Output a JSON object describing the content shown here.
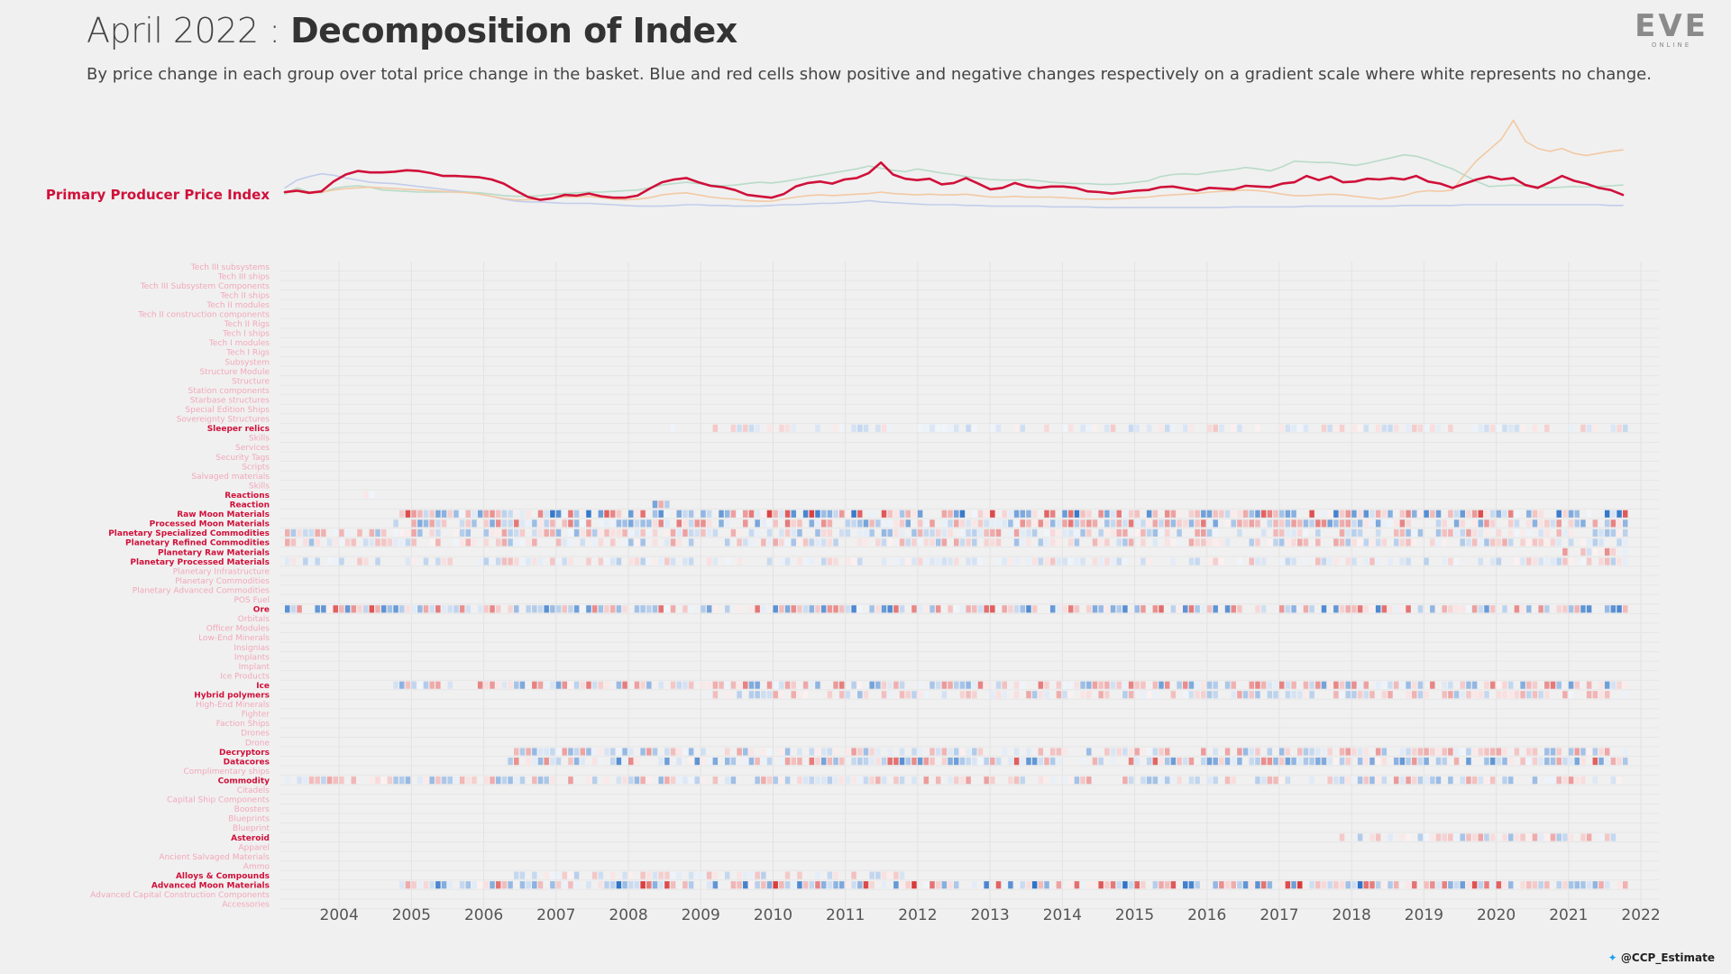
{
  "header": {
    "title_light": "April 2022 : ",
    "title_bold": "Decomposition of Index",
    "subtitle": "By price change in each group over total price change in the basket. Blue and red cells show positive and negative changes respectively on a gradient scale where white represents no change."
  },
  "logo": {
    "text": "EVE",
    "subtext": "ONLINE"
  },
  "credit": {
    "handle": "@CCP_Estimate",
    "icon": "twitter-bird-icon"
  },
  "colors": {
    "background": "#f0f0f0",
    "highlight": "#d0103a",
    "inactive_label": "#f2a8bb",
    "positive": "#2f74c8",
    "negative": "#d93a3a",
    "context_lines": [
      "#f2c9a4",
      "#b8dbc8",
      "#c2cdea"
    ]
  },
  "chart_data": [
    {
      "type": "line",
      "series": [
        {
          "name": "Primary Producer Price Index",
          "highlight": true,
          "values": [
            1.0,
            1.02,
            0.99,
            1.01,
            1.15,
            1.25,
            1.3,
            1.28,
            1.28,
            1.29,
            1.31,
            1.3,
            1.27,
            1.23,
            1.23,
            1.22,
            1.21,
            1.18,
            1.12,
            1.02,
            0.93,
            0.89,
            0.91,
            0.96,
            0.95,
            0.98,
            0.94,
            0.92,
            0.92,
            0.95,
            1.05,
            1.14,
            1.18,
            1.2,
            1.14,
            1.09,
            1.07,
            1.03,
            0.96,
            0.94,
            0.92,
            0.97,
            1.08,
            1.13,
            1.15,
            1.12,
            1.18,
            1.2,
            1.27,
            1.42,
            1.25,
            1.19,
            1.17,
            1.19,
            1.11,
            1.13,
            1.2,
            1.12,
            1.04,
            1.06,
            1.13,
            1.08,
            1.06,
            1.08,
            1.08,
            1.06,
            1.01,
            1.0,
            0.98,
            1.0,
            1.02,
            1.03,
            1.07,
            1.08,
            1.05,
            1.02,
            1.06,
            1.05,
            1.04,
            1.09,
            1.08,
            1.07,
            1.12,
            1.14,
            1.23,
            1.17,
            1.22,
            1.14,
            1.15,
            1.19,
            1.18,
            1.2,
            1.18,
            1.23,
            1.15,
            1.12,
            1.06,
            1.12,
            1.18,
            1.22,
            1.18,
            1.2,
            1.1,
            1.06,
            1.14,
            1.23,
            1.16,
            1.12,
            1.06,
            1.03,
            0.96
          ]
        },
        {
          "name": "",
          "values": [
            0.99,
            1.01,
            0.98,
            1.0,
            1.03,
            1.05,
            1.06,
            1.07,
            1.06,
            1.05,
            1.04,
            1.03,
            1.02,
            1.01,
            1.0,
            0.99,
            0.97,
            0.94,
            0.91,
            0.89,
            0.89,
            0.9,
            0.92,
            0.93,
            0.93,
            0.94,
            0.92,
            0.9,
            0.89,
            0.9,
            0.92,
            0.96,
            0.98,
            0.99,
            0.96,
            0.93,
            0.91,
            0.9,
            0.88,
            0.87,
            0.87,
            0.9,
            0.93,
            0.95,
            0.96,
            0.95,
            0.96,
            0.97,
            0.98,
            1.0,
            0.98,
            0.97,
            0.96,
            0.97,
            0.96,
            0.96,
            0.97,
            0.95,
            0.93,
            0.93,
            0.94,
            0.93,
            0.93,
            0.93,
            0.92,
            0.91,
            0.9,
            0.9,
            0.9,
            0.91,
            0.92,
            0.93,
            0.95,
            0.96,
            0.97,
            0.98,
            1.0,
            1.01,
            1.02,
            1.03,
            1.02,
            1.0,
            0.97,
            0.95,
            0.95,
            0.96,
            0.97,
            0.96,
            0.94,
            0.92,
            0.9,
            0.92,
            0.95,
            1.0,
            1.02,
            1.01,
            1.03,
            1.25,
            1.45,
            1.6,
            1.75,
            2.02,
            1.72,
            1.62,
            1.58,
            1.62,
            1.55,
            1.52,
            1.55,
            1.58,
            1.6
          ]
        },
        {
          "name": "",
          "values": [
            0.97,
            1.06,
            1.0,
            0.99,
            1.05,
            1.08,
            1.09,
            1.07,
            1.03,
            1.02,
            1.01,
            1.0,
            1.0,
            1.0,
            1.0,
            1.0,
            0.99,
            0.97,
            0.95,
            0.94,
            0.94,
            0.95,
            0.97,
            0.98,
            0.99,
            1.0,
            1.0,
            1.01,
            1.02,
            1.03,
            1.06,
            1.1,
            1.12,
            1.14,
            1.12,
            1.1,
            1.09,
            1.1,
            1.12,
            1.14,
            1.13,
            1.15,
            1.18,
            1.21,
            1.24,
            1.27,
            1.3,
            1.33,
            1.37,
            1.34,
            1.31,
            1.29,
            1.33,
            1.3,
            1.27,
            1.25,
            1.22,
            1.2,
            1.18,
            1.17,
            1.17,
            1.18,
            1.16,
            1.14,
            1.13,
            1.12,
            1.12,
            1.11,
            1.11,
            1.12,
            1.14,
            1.16,
            1.22,
            1.25,
            1.26,
            1.25,
            1.28,
            1.3,
            1.32,
            1.35,
            1.33,
            1.3,
            1.36,
            1.44,
            1.43,
            1.42,
            1.42,
            1.4,
            1.38,
            1.41,
            1.45,
            1.49,
            1.53,
            1.51,
            1.46,
            1.39,
            1.33,
            1.24,
            1.15,
            1.08,
            1.09,
            1.1,
            1.09,
            1.08,
            1.06,
            1.07,
            1.08,
            1.07,
            1.08,
            1.09,
            1.1
          ]
        },
        {
          "name": "",
          "values": [
            1.06,
            1.17,
            1.22,
            1.26,
            1.24,
            1.2,
            1.17,
            1.14,
            1.13,
            1.12,
            1.1,
            1.08,
            1.06,
            1.04,
            1.02,
            1.0,
            0.97,
            0.94,
            0.9,
            0.87,
            0.86,
            0.86,
            0.85,
            0.84,
            0.84,
            0.84,
            0.83,
            0.82,
            0.81,
            0.8,
            0.8,
            0.8,
            0.81,
            0.82,
            0.82,
            0.81,
            0.81,
            0.8,
            0.8,
            0.8,
            0.81,
            0.82,
            0.82,
            0.83,
            0.84,
            0.84,
            0.85,
            0.86,
            0.88,
            0.86,
            0.85,
            0.84,
            0.83,
            0.82,
            0.82,
            0.82,
            0.81,
            0.81,
            0.8,
            0.8,
            0.8,
            0.8,
            0.8,
            0.79,
            0.79,
            0.79,
            0.79,
            0.78,
            0.78,
            0.78,
            0.78,
            0.78,
            0.78,
            0.78,
            0.78,
            0.78,
            0.78,
            0.78,
            0.79,
            0.79,
            0.79,
            0.79,
            0.79,
            0.79,
            0.8,
            0.8,
            0.8,
            0.8,
            0.8,
            0.8,
            0.8,
            0.8,
            0.81,
            0.81,
            0.81,
            0.81,
            0.81,
            0.82,
            0.82,
            0.82,
            0.82,
            0.82,
            0.82,
            0.82,
            0.82,
            0.82,
            0.82,
            0.82,
            0.82,
            0.81,
            0.81
          ]
        }
      ]
    },
    {
      "type": "heatmap",
      "x_ticks": [
        "2004",
        "2005",
        "2006",
        "2007",
        "2008",
        "2009",
        "2010",
        "2011",
        "2012",
        "2013",
        "2014",
        "2015",
        "2016",
        "2017",
        "2018",
        "2019",
        "2020",
        "2021",
        "2022"
      ],
      "x_range": [
        "2003-10",
        "2022-04"
      ],
      "scale": "blue = positive change, red = negative change, white = no change",
      "rows": [
        {
          "label": "Tech III subsystems",
          "active": false
        },
        {
          "label": "Tech III ships",
          "active": false
        },
        {
          "label": "Tech III Subsystem Components",
          "active": false
        },
        {
          "label": "Tech II ships",
          "active": false
        },
        {
          "label": "Tech II modules",
          "active": false
        },
        {
          "label": "Tech II construction components",
          "active": false
        },
        {
          "label": "Tech II Rigs",
          "active": false
        },
        {
          "label": "Tech I ships",
          "active": false
        },
        {
          "label": "Tech I modules",
          "active": false
        },
        {
          "label": "Tech I Rigs",
          "active": false
        },
        {
          "label": "Subsystem",
          "active": false
        },
        {
          "label": "Structure Module",
          "active": false
        },
        {
          "label": "Structure",
          "active": false
        },
        {
          "label": "Station components",
          "active": false
        },
        {
          "label": "Starbase structures",
          "active": false
        },
        {
          "label": "Special Edition Ships",
          "active": false
        },
        {
          "label": "Sovereignty Structures",
          "active": false
        },
        {
          "label": "Sleeper relics",
          "active": true,
          "start": "2009-01",
          "end": "2022-04",
          "intensity": 0.25,
          "bias": -0.2
        },
        {
          "label": "Skills",
          "active": false
        },
        {
          "label": "Services",
          "active": false
        },
        {
          "label": "Security Tags",
          "active": false
        },
        {
          "label": "Scripts",
          "active": false
        },
        {
          "label": "Salvaged materials",
          "active": false
        },
        {
          "label": "Skills",
          "active": false
        },
        {
          "label": "Reactions",
          "active": true,
          "start": "2004-11",
          "end": "2005-01",
          "intensity": 0.15,
          "bias": 0.0
        },
        {
          "label": "Reaction",
          "active": true,
          "start": "2008-11",
          "end": "2009-01",
          "intensity": 0.6,
          "bias": 0.5
        },
        {
          "label": "Raw Moon Materials",
          "active": true,
          "start": "2005-04",
          "end": "2022-04",
          "intensity": 0.85,
          "bias": 0.0
        },
        {
          "label": "Processed Moon Materials",
          "active": true,
          "start": "2005-04",
          "end": "2022-04",
          "intensity": 0.6,
          "bias": 0.1
        },
        {
          "label": "Planetary Specialized Commodities",
          "active": true,
          "start": "2003-10",
          "end": "2022-04",
          "intensity": 0.45,
          "bias": 0.0
        },
        {
          "label": "Planetary Refined Commodities",
          "active": true,
          "start": "2003-10",
          "end": "2022-04",
          "intensity": 0.4,
          "bias": 0.1
        },
        {
          "label": "Planetary Raw Materials",
          "active": true,
          "start": "2021-06",
          "end": "2022-04",
          "intensity": 0.5,
          "bias": 0.4
        },
        {
          "label": "Planetary Processed Materials",
          "active": true,
          "start": "2003-10",
          "end": "2022-04",
          "intensity": 0.3,
          "bias": -0.3
        },
        {
          "label": "Planetary Infrastructure",
          "active": false
        },
        {
          "label": "Planetary Commodities",
          "active": false
        },
        {
          "label": "Planetary Advanced Commodities",
          "active": false
        },
        {
          "label": "POS Fuel",
          "active": false
        },
        {
          "label": "Ore",
          "active": true,
          "start": "2003-10",
          "end": "2022-04",
          "intensity": 0.75,
          "bias": 0.0
        },
        {
          "label": "Orbitals",
          "active": false
        },
        {
          "label": "Officer Modules",
          "active": false
        },
        {
          "label": "Low-End Minerals",
          "active": false
        },
        {
          "label": "Insignias",
          "active": false
        },
        {
          "label": "Implants",
          "active": false
        },
        {
          "label": "Implant",
          "active": false
        },
        {
          "label": "Ice Products",
          "active": false
        },
        {
          "label": "Ice",
          "active": true,
          "start": "2005-04",
          "end": "2022-04",
          "intensity": 0.6,
          "bias": 0.0
        },
        {
          "label": "Hybrid polymers",
          "active": true,
          "start": "2009-04",
          "end": "2022-04",
          "intensity": 0.4,
          "bias": 0.0
        },
        {
          "label": "High-End Minerals",
          "active": false
        },
        {
          "label": "Fighter",
          "active": false
        },
        {
          "label": "Faction Ships",
          "active": false
        },
        {
          "label": "Drones",
          "active": false
        },
        {
          "label": "Drone",
          "active": false
        },
        {
          "label": "Decryptors",
          "active": true,
          "start": "2006-11",
          "end": "2022-04",
          "intensity": 0.45,
          "bias": 0.0
        },
        {
          "label": "Datacores",
          "active": true,
          "start": "2006-11",
          "end": "2022-04",
          "intensity": 0.7,
          "bias": -0.3
        },
        {
          "label": "Complimentary ships",
          "active": false
        },
        {
          "label": "Commodity",
          "active": true,
          "start": "2003-10",
          "end": "2022-04",
          "intensity": 0.45,
          "bias": 0.0
        },
        {
          "label": "Citadels",
          "active": false
        },
        {
          "label": "Capital Ship Components",
          "active": false
        },
        {
          "label": "Boosters",
          "active": false
        },
        {
          "label": "Blueprints",
          "active": false
        },
        {
          "label": "Blueprint",
          "active": false
        },
        {
          "label": "Asteroid",
          "active": true,
          "start": "2018-05",
          "end": "2022-04",
          "intensity": 0.4,
          "bias": 0.4
        },
        {
          "label": "Apparel",
          "active": false
        },
        {
          "label": "Ancient Salvaged Materials",
          "active": false
        },
        {
          "label": "Ammo",
          "active": false
        },
        {
          "label": "Alloys & Compounds",
          "active": true,
          "start": "2006-11",
          "end": "2012-04",
          "intensity": 0.3,
          "bias": 0.0
        },
        {
          "label": "Advanced Moon Materials",
          "active": true,
          "start": "2005-04",
          "end": "2022-04",
          "intensity": 0.9,
          "bias": 0.0
        },
        {
          "label": "Advanced Capital Construction Components",
          "active": false
        },
        {
          "label": "Accessories",
          "active": false
        }
      ]
    }
  ]
}
